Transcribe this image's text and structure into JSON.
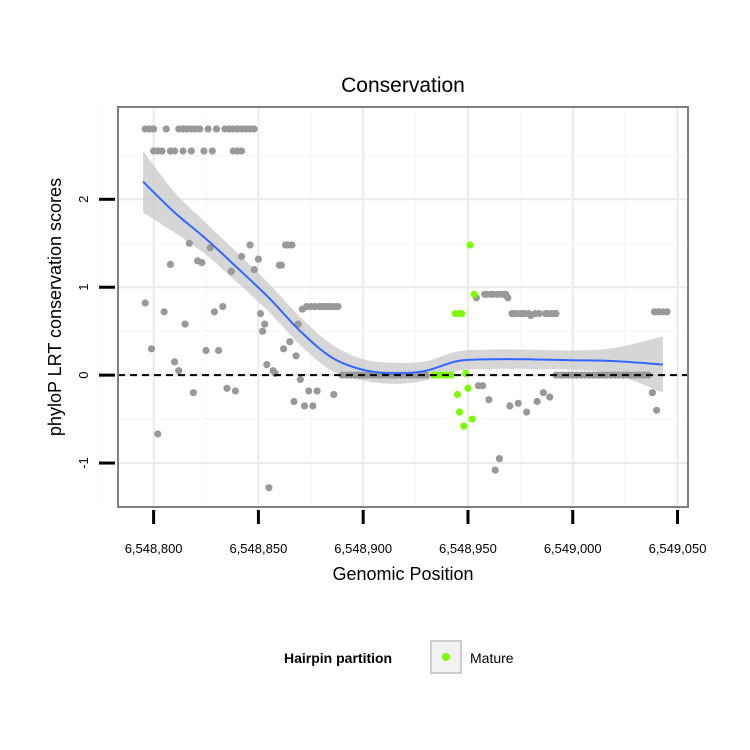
{
  "chart_data": {
    "type": "scatter",
    "title": "Conservation",
    "xlabel": "Genomic Position",
    "ylabel": "phyloP LRT conservation scores",
    "xlim": [
      6548783,
      6549055
    ],
    "ylim": [
      -1.5,
      3.05
    ],
    "x_ticks": [
      6548800,
      6548850,
      6548900,
      6548950,
      6549000,
      6549050
    ],
    "x_tick_labels": [
      "6,548,800",
      "6,548,850",
      "6,548,900",
      "6,548,950",
      "6,549,000",
      "6,549,050"
    ],
    "y_ticks": [
      -1,
      0,
      1,
      2
    ],
    "y_tick_labels": [
      "-1",
      "0",
      "1",
      "2"
    ],
    "grid": true,
    "reference_line": {
      "y": 0,
      "style": "dashed",
      "color": "#000000"
    },
    "legend": {
      "title": "Hairpin partition",
      "position": "bottom",
      "entries": [
        {
          "label": "Mature",
          "color": "#7cfc00"
        }
      ]
    },
    "colors": {
      "other": "#999999",
      "mature": "#7cfc00",
      "smooth_line": "#3366ff",
      "ribbon": "#c8c8c8"
    },
    "series": [
      {
        "name": "Other",
        "color": "#999999",
        "points": [
          [
            6548796,
            2.8
          ],
          [
            6548798,
            2.8
          ],
          [
            6548800,
            2.8
          ],
          [
            6548800,
            2.55
          ],
          [
            6548802,
            2.55
          ],
          [
            6548804,
            2.55
          ],
          [
            6548806,
            2.8
          ],
          [
            6548808,
            2.55
          ],
          [
            6548810,
            2.55
          ],
          [
            6548812,
            2.8
          ],
          [
            6548814,
            2.8
          ],
          [
            6548814,
            2.55
          ],
          [
            6548816,
            2.8
          ],
          [
            6548818,
            2.8
          ],
          [
            6548818,
            2.55
          ],
          [
            6548820,
            2.8
          ],
          [
            6548822,
            2.8
          ],
          [
            6548824,
            2.55
          ],
          [
            6548826,
            2.8
          ],
          [
            6548828,
            2.55
          ],
          [
            6548830,
            2.8
          ],
          [
            6548834,
            2.8
          ],
          [
            6548836,
            2.8
          ],
          [
            6548838,
            2.55
          ],
          [
            6548838,
            2.8
          ],
          [
            6548840,
            2.55
          ],
          [
            6548840,
            2.8
          ],
          [
            6548842,
            2.8
          ],
          [
            6548842,
            2.55
          ],
          [
            6548844,
            2.8
          ],
          [
            6548846,
            2.8
          ],
          [
            6548848,
            2.8
          ],
          [
            6548796,
            0.82
          ],
          [
            6548799,
            0.3
          ],
          [
            6548802,
            -0.67
          ],
          [
            6548805,
            0.72
          ],
          [
            6548808,
            1.26
          ],
          [
            6548810,
            0.15
          ],
          [
            6548812,
            0.05
          ],
          [
            6548815,
            0.58
          ],
          [
            6548817,
            1.5
          ],
          [
            6548819,
            -0.2
          ],
          [
            6548821,
            1.3
          ],
          [
            6548823,
            1.28
          ],
          [
            6548825,
            0.28
          ],
          [
            6548827,
            1.45
          ],
          [
            6548829,
            0.72
          ],
          [
            6548831,
            0.28
          ],
          [
            6548833,
            0.78
          ],
          [
            6548835,
            -0.15
          ],
          [
            6548837,
            1.18
          ],
          [
            6548839,
            -0.18
          ],
          [
            6548842,
            1.35
          ],
          [
            6548846,
            1.48
          ],
          [
            6548848,
            1.2
          ],
          [
            6548850,
            1.32
          ],
          [
            6548851,
            0.7
          ],
          [
            6548852,
            0.5
          ],
          [
            6548853,
            0.58
          ],
          [
            6548854,
            0.12
          ],
          [
            6548855,
            -1.28
          ],
          [
            6548857,
            0.05
          ],
          [
            6548858,
            0.02
          ],
          [
            6548860,
            1.25
          ],
          [
            6548861,
            1.25
          ],
          [
            6548862,
            0.3
          ],
          [
            6548863,
            1.48
          ],
          [
            6548864,
            1.48
          ],
          [
            6548865,
            0.38
          ],
          [
            6548866,
            1.48
          ],
          [
            6548867,
            -0.3
          ],
          [
            6548868,
            0.22
          ],
          [
            6548869,
            0.58
          ],
          [
            6548870,
            -0.05
          ],
          [
            6548871,
            0.75
          ],
          [
            6548872,
            -0.35
          ],
          [
            6548873,
            0.78
          ],
          [
            6548874,
            -0.18
          ],
          [
            6548875,
            0.78
          ],
          [
            6548876,
            -0.35
          ],
          [
            6548877,
            0.78
          ],
          [
            6548878,
            -0.18
          ],
          [
            6548879,
            0.78
          ],
          [
            6548880,
            0.78
          ],
          [
            6548881,
            0.78
          ],
          [
            6548882,
            0.78
          ],
          [
            6548883,
            0.78
          ],
          [
            6548884,
            0.78
          ],
          [
            6548885,
            0.78
          ],
          [
            6548886,
            -0.22
          ],
          [
            6548887,
            0.78
          ],
          [
            6548888,
            0.78
          ],
          [
            6548890,
            0
          ],
          [
            6548892,
            0
          ],
          [
            6548894,
            0
          ],
          [
            6548896,
            0
          ],
          [
            6548898,
            0
          ],
          [
            6548900,
            0
          ],
          [
            6548902,
            0
          ],
          [
            6548904,
            0
          ],
          [
            6548906,
            0
          ],
          [
            6548908,
            0
          ],
          [
            6548910,
            0
          ],
          [
            6548912,
            0
          ],
          [
            6548914,
            0
          ],
          [
            6548916,
            0
          ],
          [
            6548918,
            0
          ],
          [
            6548920,
            0
          ],
          [
            6548922,
            0
          ],
          [
            6548924,
            0
          ],
          [
            6548926,
            0
          ],
          [
            6548928,
            0
          ],
          [
            6548930,
            0
          ],
          [
            6548954,
            0.88
          ],
          [
            6548955,
            -0.12
          ],
          [
            6548957,
            -0.12
          ],
          [
            6548958,
            0.92
          ],
          [
            6548959,
            0.92
          ],
          [
            6548960,
            -0.28
          ],
          [
            6548961,
            0.92
          ],
          [
            6548962,
            0.92
          ],
          [
            6548963,
            -1.08
          ],
          [
            6548964,
            0.92
          ],
          [
            6548965,
            -0.95
          ],
          [
            6548966,
            0.92
          ],
          [
            6548967,
            0.92
          ],
          [
            6548968,
            0.92
          ],
          [
            6548969,
            0.88
          ],
          [
            6548970,
            -0.35
          ],
          [
            6548971,
            0.7
          ],
          [
            6548972,
            0.7
          ],
          [
            6548973,
            0.7
          ],
          [
            6548974,
            -0.32
          ],
          [
            6548975,
            0.7
          ],
          [
            6548976,
            0.7
          ],
          [
            6548977,
            0.7
          ],
          [
            6548978,
            -0.42
          ],
          [
            6548979,
            0.7
          ],
          [
            6548980,
            0.68
          ],
          [
            6548982,
            0.7
          ],
          [
            6548983,
            -0.3
          ],
          [
            6548984,
            0.7
          ],
          [
            6548986,
            -0.2
          ],
          [
            6548987,
            0.7
          ],
          [
            6548988,
            0.7
          ],
          [
            6548989,
            -0.25
          ],
          [
            6548990,
            0.7
          ],
          [
            6548991,
            0.7
          ],
          [
            6548992,
            0.7
          ],
          [
            6548992,
            0
          ],
          [
            6548994,
            0
          ],
          [
            6548996,
            0
          ],
          [
            6548998,
            0
          ],
          [
            6549000,
            0
          ],
          [
            6549002,
            0
          ],
          [
            6549004,
            0
          ],
          [
            6549006,
            0
          ],
          [
            6549008,
            0
          ],
          [
            6549010,
            0
          ],
          [
            6549012,
            0
          ],
          [
            6549014,
            0
          ],
          [
            6549016,
            0
          ],
          [
            6549018,
            0
          ],
          [
            6549020,
            0
          ],
          [
            6549022,
            0
          ],
          [
            6549024,
            0
          ],
          [
            6549026,
            0
          ],
          [
            6549028,
            0
          ],
          [
            6549030,
            0
          ],
          [
            6549032,
            0
          ],
          [
            6549034,
            0
          ],
          [
            6549036,
            0
          ],
          [
            6549038,
            -0.2
          ],
          [
            6549040,
            -0.4
          ],
          [
            6549039,
            0.72
          ],
          [
            6549041,
            0.72
          ],
          [
            6549043,
            0.72
          ],
          [
            6549045,
            0.72
          ]
        ]
      },
      {
        "name": "Mature",
        "color": "#7cfc00",
        "points": [
          [
            6548934,
            0
          ],
          [
            6548936,
            0
          ],
          [
            6548938,
            0
          ],
          [
            6548940,
            0
          ],
          [
            6548942,
            0
          ],
          [
            6548944,
            0.7
          ],
          [
            6548946,
            0.7
          ],
          [
            6548947,
            0.7
          ],
          [
            6548945,
            -0.22
          ],
          [
            6548946,
            -0.42
          ],
          [
            6548948,
            -0.58
          ],
          [
            6548949,
            0.02
          ],
          [
            6548950,
            -0.15
          ],
          [
            6548951,
            1.48
          ],
          [
            6548952,
            -0.5
          ],
          [
            6548953,
            0.92
          ]
        ]
      }
    ],
    "smooth": {
      "x": [
        6548795,
        6548810,
        6548825,
        6548840,
        6548855,
        6548870,
        6548885,
        6548900,
        6548915,
        6548930,
        6548945,
        6548960,
        6548980,
        6549000,
        6549020,
        6549043
      ],
      "y": [
        2.2,
        1.85,
        1.55,
        1.22,
        0.88,
        0.5,
        0.2,
        0.06,
        0.02,
        0.05,
        0.16,
        0.18,
        0.18,
        0.17,
        0.16,
        0.12
      ],
      "lower": [
        1.85,
        1.62,
        1.37,
        1.05,
        0.72,
        0.34,
        0.05,
        -0.06,
        -0.1,
        -0.06,
        0.05,
        0.07,
        0.07,
        0.06,
        0.01,
        -0.2
      ],
      "upper": [
        2.55,
        2.08,
        1.73,
        1.39,
        1.04,
        0.66,
        0.35,
        0.18,
        0.14,
        0.16,
        0.27,
        0.29,
        0.29,
        0.28,
        0.31,
        0.44
      ]
    }
  }
}
